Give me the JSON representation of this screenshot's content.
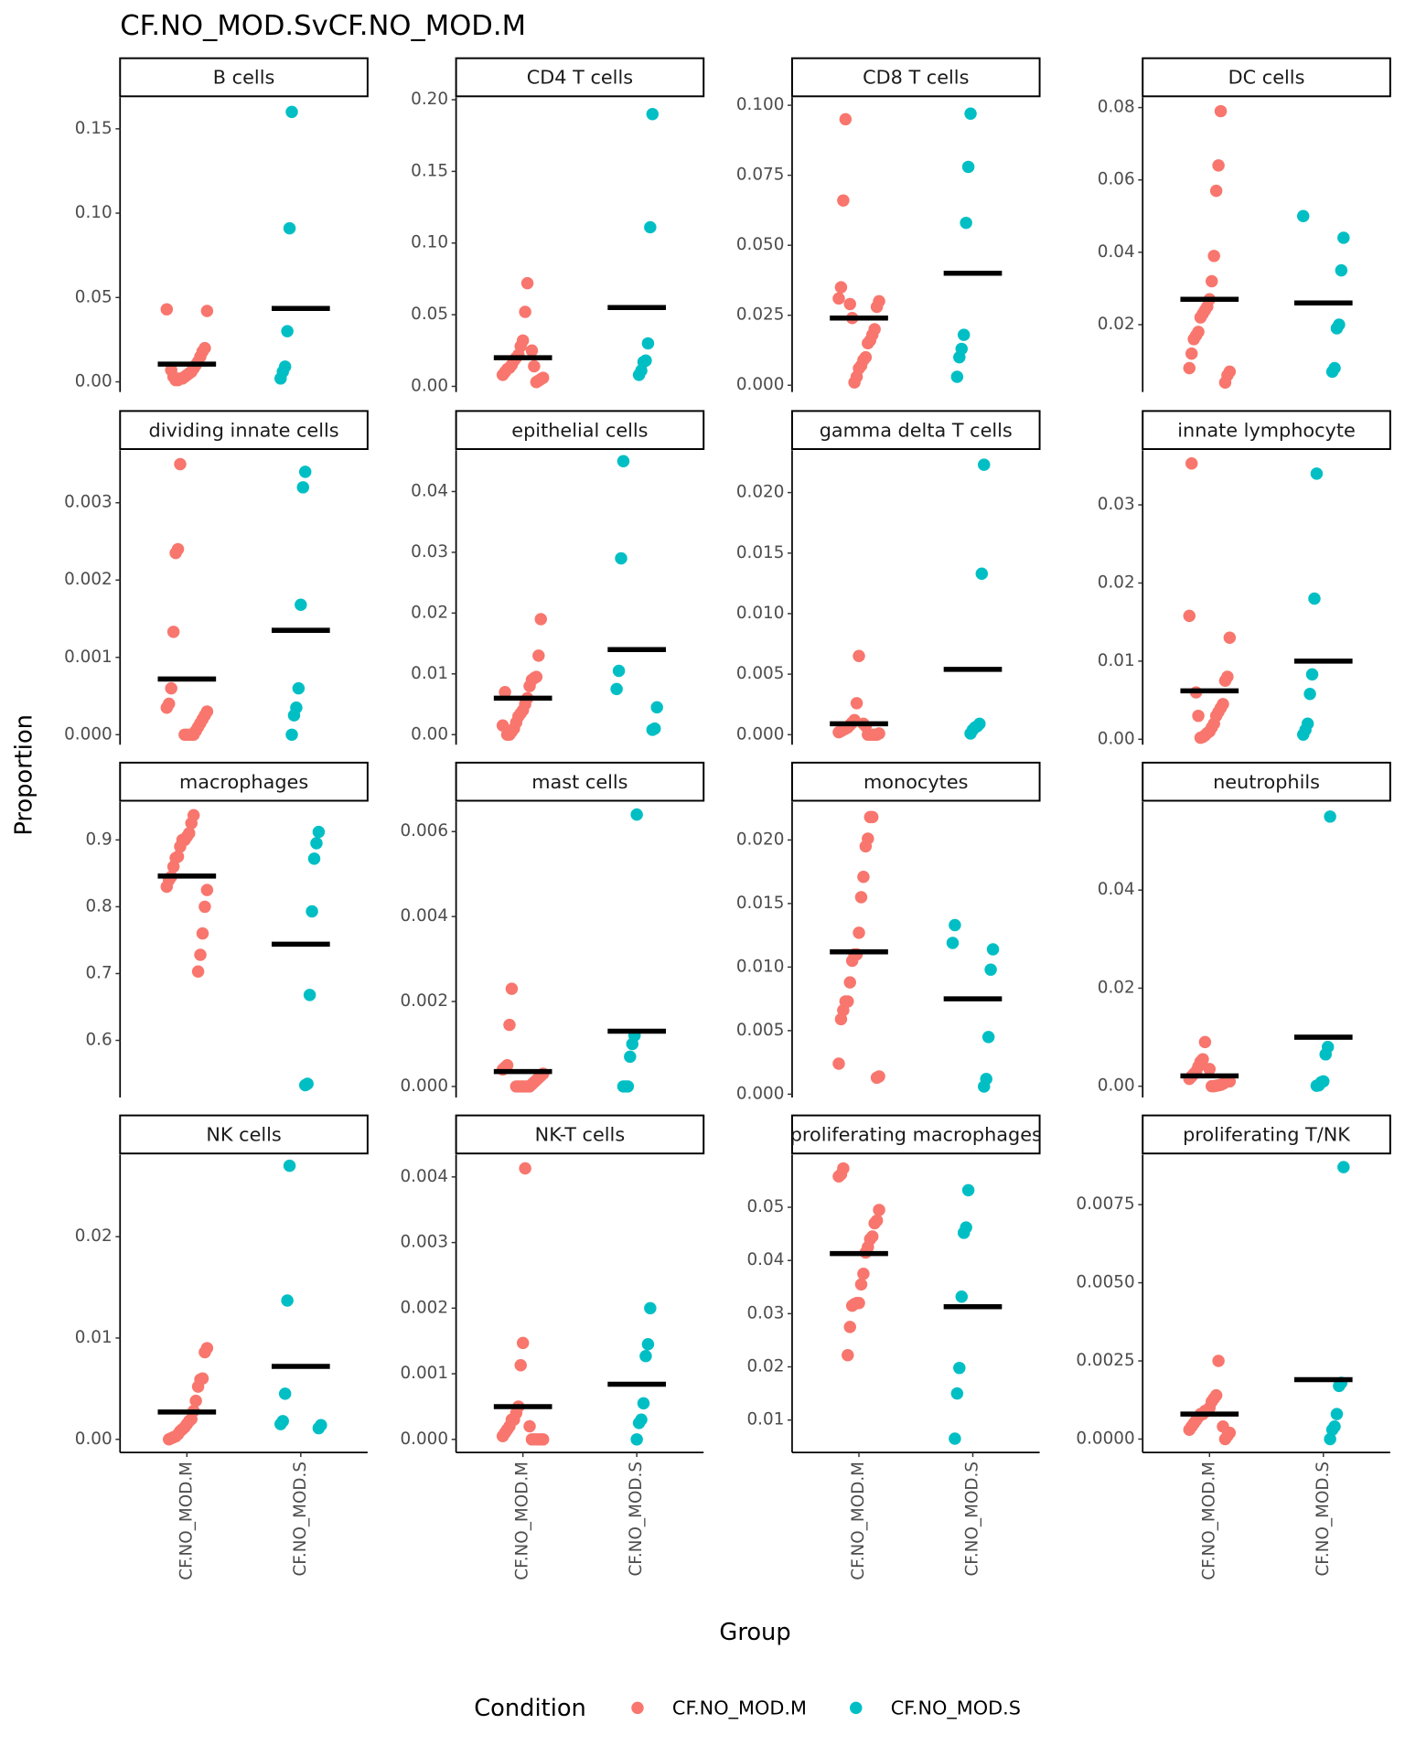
{
  "chart_data": {
    "type": "strip",
    "title": "CF.NO_MOD.SvCF.NO_MOD.M",
    "x_label": "Group",
    "y_label": "Proportion",
    "legend_title": "Condition",
    "categories": [
      "CF.NO_MOD.M",
      "CF.NO_MOD.S"
    ],
    "series": [
      {
        "name": "CF.NO_MOD.M",
        "color": "#F8766D"
      },
      {
        "name": "CF.NO_MOD.S",
        "color": "#00BFC4"
      }
    ],
    "panels": [
      {
        "title": "B cells",
        "ylim": [
          -0.006,
          0.1686
        ],
        "yticks": [
          {
            "value": 0,
            "label": "0.00"
          },
          0.05,
          {
            "value": 0.1,
            "label": "0.10"
          },
          0.15
        ],
        "groups": [
          {
            "values": [
              0.043,
              0.042,
              0.02,
              0.018,
              0.015,
              0.012,
              0.01,
              0.008,
              0.006,
              0.005,
              0.004,
              0.003,
              0.002,
              0.002,
              0.001,
              0.001,
              0.003,
              0.007
            ],
            "mean": 0.0105
          },
          {
            "values": [
              0.16,
              0.091,
              0.03,
              0.009,
              0.006,
              0.002
            ],
            "mean": 0.0435
          }
        ]
      },
      {
        "title": "CD4 T cells",
        "ylim": [
          -0.0039,
          0.2016
        ],
        "yticks": [
          {
            "value": 0,
            "label": "0.00"
          },
          0.05,
          {
            "value": 0.1,
            "label": "0.10"
          },
          0.15,
          {
            "value": 0.2,
            "label": "0.20"
          }
        ],
        "groups": [
          {
            "values": [
              0.072,
              0.052,
              0.032,
              0.028,
              0.022,
              0.02,
              0.018,
              0.015,
              0.013,
              0.012,
              0.01,
              0.008,
              0.006,
              0.005,
              0.004,
              0.003,
              0.014,
              0.025
            ],
            "mean": 0.02
          },
          {
            "values": [
              0.19,
              0.111,
              0.03,
              0.018,
              0.017,
              0.011,
              0.008
            ],
            "mean": 0.055
          }
        ]
      },
      {
        "title": "CD8 T cells",
        "ylim": [
          -0.0024,
          0.1028
        ],
        "yticks": [
          {
            "value": 0,
            "label": "0.000"
          },
          0.025,
          {
            "value": 0.05,
            "label": "0.050"
          },
          0.075,
          {
            "value": 0.1,
            "label": "0.100"
          }
        ],
        "groups": [
          {
            "values": [
              0.095,
              0.066,
              0.035,
              0.031,
              0.03,
              0.028,
              0.02,
              0.018,
              0.016,
              0.015,
              0.01,
              0.009,
              0.007,
              0.006,
              0.003,
              0.001,
              0.024,
              0.029
            ],
            "mean": 0.024
          },
          {
            "values": [
              0.097,
              0.078,
              0.058,
              0.018,
              0.013,
              0.01,
              0.003
            ],
            "mean": 0.04
          }
        ]
      },
      {
        "title": "DC cells",
        "ylim": [
          0.0014,
          0.0828
        ],
        "yticks": [
          0.02,
          0.04,
          0.06,
          0.08
        ],
        "groups": [
          {
            "values": [
              0.079,
              0.064,
              0.057,
              0.039,
              0.032,
              0.027,
              0.025,
              0.024,
              0.023,
              0.022,
              0.018,
              0.017,
              0.016,
              0.012,
              0.008,
              0.007,
              0.006,
              0.004
            ],
            "mean": 0.027
          },
          {
            "values": [
              0.05,
              0.044,
              0.035,
              0.02,
              0.019,
              0.008,
              0.007
            ],
            "mean": 0.026
          }
        ]
      },
      {
        "title": "dividing innate cells",
        "ylim": [
          -0.00013,
          0.00368
        ],
        "yticks": [
          {
            "value": 0,
            "label": "0.000"
          },
          0.001,
          0.002,
          0.003
        ],
        "groups": [
          {
            "values": [
              0.0035,
              0.0024,
              0.00235,
              0.00133,
              0.0006,
              0.0004,
              0.00035,
              0.0003,
              0.00025,
              0.0002,
              0.00015,
              0.0001,
              5e-05,
              0,
              0,
              0,
              0,
              0
            ],
            "mean": 0.00072
          },
          {
            "values": [
              0.0034,
              0.0032,
              0.00168,
              0.0006,
              0.00035,
              0.00025,
              0
            ],
            "mean": 0.00135
          }
        ]
      },
      {
        "title": "epithelial cells",
        "ylim": [
          -0.00166,
          0.0468
        ],
        "yticks": [
          {
            "value": 0,
            "label": "0.00"
          },
          0.01,
          0.02,
          0.03,
          0.04
        ],
        "groups": [
          {
            "values": [
              0.019,
              0.013,
              0.0095,
              0.0093,
              0.009,
              0.008,
              0.006,
              0.005,
              0.004,
              0.0035,
              0.003,
              0.002,
              0.001,
              0.0005,
              0,
              0,
              0.007,
              0.0015
            ],
            "mean": 0.006
          },
          {
            "values": [
              0.045,
              0.029,
              0.0105,
              0.0075,
              0.0045,
              0.001,
              0.0008
            ],
            "mean": 0.014
          }
        ]
      },
      {
        "title": "gamma delta T cells",
        "ylim": [
          -0.00083,
          0.0235
        ],
        "yticks": [
          {
            "value": 0,
            "label": "0.000"
          },
          0.005,
          {
            "value": 0.01,
            "label": "0.010"
          },
          0.015,
          {
            "value": 0.02,
            "label": "0.020"
          }
        ],
        "groups": [
          {
            "values": [
              0.0065,
              0.0026,
              0.0012,
              0.001,
              0.0008,
              0.0006,
              0.0005,
              0.0004,
              0.0003,
              0.0002,
              0.0001,
              0,
              0,
              0,
              0,
              0,
              0.0007,
              0.0009
            ],
            "mean": 0.0009
          },
          {
            "values": [
              0.0223,
              0.0133,
              0.0009,
              0.0007,
              0.0006,
              0.0004,
              0.0001
            ],
            "mean": 0.0054
          }
        ]
      },
      {
        "title": "innate lymphocyte",
        "ylim": [
          -0.0007,
          0.037
        ],
        "yticks": [
          {
            "value": 0,
            "label": "0.00"
          },
          0.01,
          0.02,
          0.03
        ],
        "groups": [
          {
            "values": [
              0.0353,
              0.0158,
              0.013,
              0.008,
              0.0075,
              0.0045,
              0.004,
              0.0035,
              0.003,
              0.002,
              0.0015,
              0.001,
              0.0008,
              0.0005,
              0.0003,
              0.0002,
              0.003,
              0.006
            ],
            "mean": 0.0062
          },
          {
            "values": [
              0.034,
              0.018,
              0.0083,
              0.0058,
              0.002,
              0.0012,
              0.0006
            ],
            "mean": 0.01
          }
        ]
      },
      {
        "title": "macrophages",
        "ylim": [
          0.5145,
          0.957
        ],
        "yticks": [
          0.6,
          0.7,
          0.8,
          0.9
        ],
        "groups": [
          {
            "values": [
              0.937,
              0.925,
              0.91,
              0.905,
              0.9,
              0.9,
              0.89,
              0.875,
              0.873,
              0.86,
              0.845,
              0.84,
              0.83,
              0.825,
              0.8,
              0.76,
              0.728,
              0.703
            ],
            "mean": 0.846
          },
          {
            "values": [
              0.912,
              0.895,
              0.872,
              0.793,
              0.668,
              0.535,
              0.533
            ],
            "mean": 0.744
          }
        ]
      },
      {
        "title": "mast cells",
        "ylim": [
          -0.00026,
          0.0067
        ],
        "yticks": [
          {
            "value": 0,
            "label": "0.000"
          },
          0.002,
          0.004,
          0.006
        ],
        "groups": [
          {
            "values": [
              0.0023,
              0.00145,
              0.0005,
              0.00045,
              0.0004,
              0.0003,
              0.00025,
              0.0002,
              0.00015,
              0.0001,
              5e-05,
              0,
              0,
              0,
              0,
              0,
              0,
              0
            ],
            "mean": 0.00035
          },
          {
            "values": [
              0.0064,
              0.0012,
              0.001,
              0.0007,
              0,
              0,
              0
            ],
            "mean": 0.0013
          }
        ]
      },
      {
        "title": "monocytes",
        "ylim": [
          -0.00026,
          0.023
        ],
        "yticks": [
          {
            "value": 0,
            "label": "0.000"
          },
          0.005,
          {
            "value": 0.01,
            "label": "0.010"
          },
          0.015,
          {
            "value": 0.02,
            "label": "0.020"
          }
        ],
        "groups": [
          {
            "values": [
              0.0218,
              0.0218,
              0.0201,
              0.0195,
              0.0171,
              0.0155,
              0.0127,
              0.011,
              0.011,
              0.0105,
              0.0088,
              0.0073,
              0.0073,
              0.0066,
              0.0059,
              0.0024,
              0.0014,
              0.0013
            ],
            "mean": 0.0112
          },
          {
            "values": [
              0.0133,
              0.0119,
              0.0114,
              0.0098,
              0.0045,
              0.0012,
              0.0006
            ],
            "mean": 0.0075
          }
        ]
      },
      {
        "title": "neutrophils",
        "ylim": [
          -0.0023,
          0.058
        ],
        "yticks": [
          {
            "value": 0,
            "label": "0.00"
          },
          0.02,
          0.04
        ],
        "groups": [
          {
            "values": [
              0.009,
              0.0055,
              0.005,
              0.004,
              0.003,
              0.0025,
              0.002,
              0.0015,
              0.001,
              0.001,
              0.0008,
              0.0005,
              0.0003,
              0.0002,
              0.0001,
              0,
              0,
              0.0035
            ],
            "mean": 0.0021
          },
          {
            "values": [
              0.055,
              0.008,
              0.0065,
              0.001,
              0.0008,
              0.0002,
              0.0001
            ],
            "mean": 0.01
          }
        ]
      },
      {
        "title": "NK cells",
        "ylim": [
          -0.0013,
          0.0281
        ],
        "yticks": [
          {
            "value": 0,
            "label": "0.00"
          },
          0.01,
          0.02
        ],
        "groups": [
          {
            "values": [
              0.009,
              0.0086,
              0.006,
              0.0059,
              0.0052,
              0.0038,
              0.0028,
              0.002,
              0.0018,
              0.0015,
              0.0012,
              0.001,
              0.0008,
              0.0005,
              0.0003,
              0.0002,
              0.0001,
              0
            ],
            "mean": 0.0027
          },
          {
            "values": [
              0.027,
              0.0137,
              0.0045,
              0.0018,
              0.0015,
              0.0014,
              0.0011
            ],
            "mean": 0.0072
          }
        ]
      },
      {
        "title": "NK-T cells",
        "ylim": [
          -0.0002,
          0.00434
        ],
        "yticks": [
          {
            "value": 0,
            "label": "0.000"
          },
          0.001,
          0.002,
          0.003,
          0.004
        ],
        "groups": [
          {
            "values": [
              0.00413,
              0.00147,
              0.00113,
              0.0005,
              0.0004,
              0.0003,
              0.0003,
              0.0002,
              0.00015,
              0.0001,
              5e-05,
              0,
              0,
              0,
              0,
              0,
              0,
              0.0002
            ],
            "mean": 0.0005
          },
          {
            "values": [
              0.002,
              0.00145,
              0.00127,
              0.00055,
              0.0003,
              0.00025,
              0
            ],
            "mean": 0.00084
          }
        ]
      },
      {
        "title": "proliferating macrophages",
        "ylim": [
          0.0039,
          0.0599
        ],
        "yticks": [
          0.01,
          0.02,
          0.03,
          0.04,
          0.05
        ],
        "groups": [
          {
            "values": [
              0.0573,
              0.0562,
              0.0558,
              0.0495,
              0.0475,
              0.047,
              0.0445,
              0.044,
              0.0425,
              0.0415,
              0.0375,
              0.0355,
              0.032,
              0.032,
              0.0318,
              0.0315,
              0.0275,
              0.0222
            ],
            "mean": 0.0413
          },
          {
            "values": [
              0.0532,
              0.0462,
              0.0452,
              0.0332,
              0.0198,
              0.015,
              0.0065
            ],
            "mean": 0.0313
          }
        ]
      },
      {
        "title": "proliferating T/NK",
        "ylim": [
          -0.00043,
          0.0091
        ],
        "yticks": [
          {
            "value": 0,
            "label": "0.0000"
          },
          0.0025,
          {
            "value": 0.005,
            "label": "0.0050"
          },
          0.0075
        ],
        "groups": [
          {
            "values": [
              0.0025,
              0.0014,
              0.0013,
              0.0012,
              0.001,
              0.0009,
              0.0009,
              0.0008,
              0.0008,
              0.0007,
              0.0006,
              0.0005,
              0.0004,
              0.0003,
              0.0002,
              0.0001,
              0,
              0.0004
            ],
            "mean": 0.0008
          },
          {
            "values": [
              0.0087,
              0.0018,
              0.0017,
              0.0008,
              0.0004,
              0.0003,
              0
            ],
            "mean": 0.0019
          }
        ]
      }
    ]
  }
}
